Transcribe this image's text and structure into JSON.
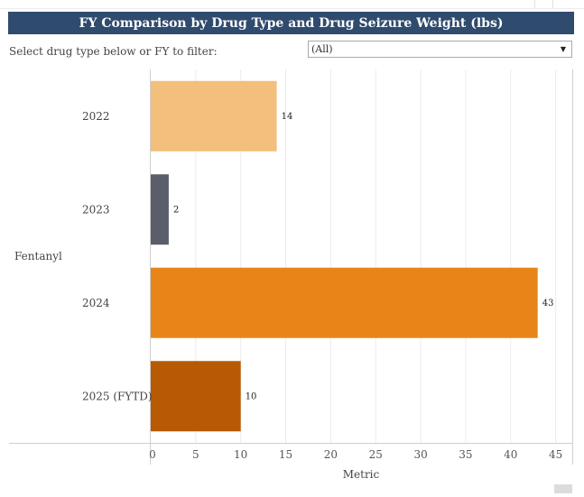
{
  "header": {
    "title": "FY Comparison by Drug Type and Drug Seizure Weight (lbs)"
  },
  "filter": {
    "label": "Select drug type below or FY to filter:",
    "selected": "(All)"
  },
  "colors": {
    "title_bar": "#2f4b6e",
    "bar_2022": "#f2bf7c",
    "bar_2023": "#5a5e6b",
    "bar_2024": "#e88519",
    "bar_2025": "#b85a04"
  },
  "chart_data": {
    "type": "bar",
    "orientation": "horizontal",
    "group": "Fentanyl",
    "categories": [
      "2022",
      "2023",
      "2024",
      "2025 (FYTD)"
    ],
    "values": [
      14,
      2,
      43,
      10
    ],
    "data_labels": [
      "14",
      "2",
      "43",
      "10"
    ],
    "bar_colors": [
      "#f2bf7c",
      "#5a5e6b",
      "#e88519",
      "#b85a04"
    ],
    "xlabel": "Metric",
    "xlim": [
      0,
      45
    ],
    "xticks": [
      "0",
      "5",
      "10",
      "15",
      "20",
      "25",
      "30",
      "35",
      "40",
      "45"
    ],
    "grid": true
  }
}
